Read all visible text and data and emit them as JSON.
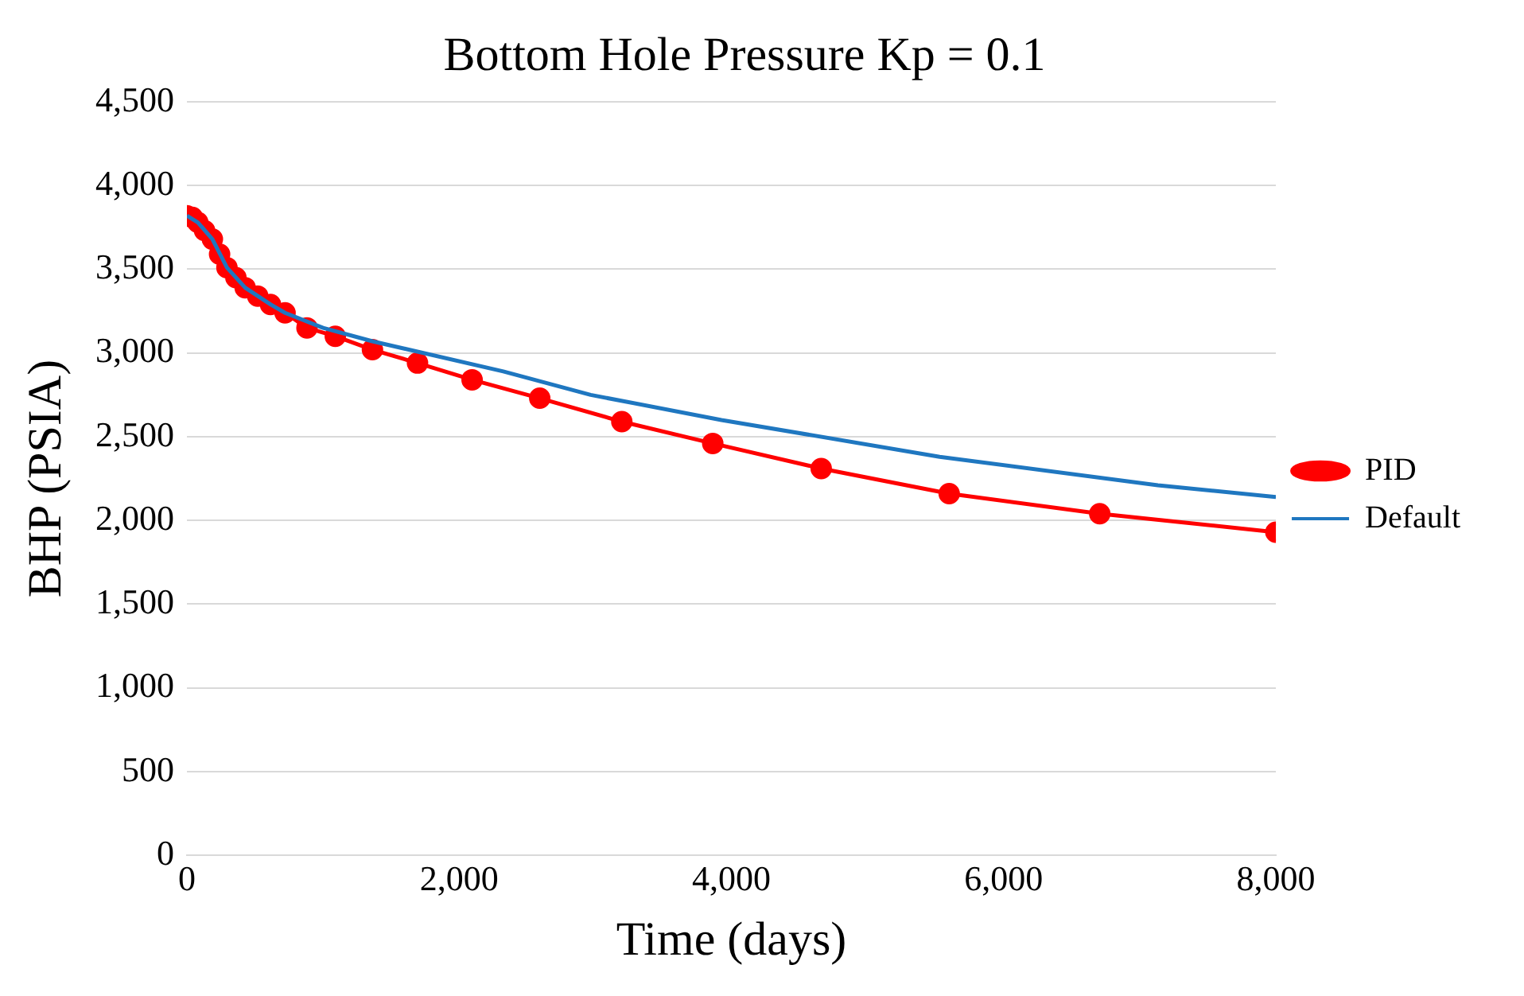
{
  "chart_data": {
    "type": "line",
    "title": "Bottom Hole Pressure Kp = 0.1",
    "xlabel": "Time (days)",
    "ylabel": "BHP (PSIA)",
    "xlim": [
      0,
      8000
    ],
    "xticks": [
      {
        "value": 0,
        "label": "0"
      },
      {
        "value": 2000,
        "label": "2,000"
      },
      {
        "value": 4000,
        "label": "4,000"
      },
      {
        "value": 6000,
        "label": "6,000"
      },
      {
        "value": 8000,
        "label": "8,000"
      }
    ],
    "ylim": [
      0,
      4500
    ],
    "yticks": [
      {
        "value": 0,
        "label": "0"
      },
      {
        "value": 500,
        "label": "500"
      },
      {
        "value": 1000,
        "label": "1,000"
      },
      {
        "value": 1500,
        "label": "1,500"
      },
      {
        "value": 2000,
        "label": "2,000"
      },
      {
        "value": 2500,
        "label": "2,500"
      },
      {
        "value": 3000,
        "label": "3,000"
      },
      {
        "value": 3500,
        "label": "3,500"
      },
      {
        "value": 4000,
        "label": "4,000"
      },
      {
        "value": 4500,
        "label": "4,500"
      }
    ],
    "grid": "y",
    "legend": "right",
    "series": [
      {
        "name": "PID",
        "color": "#ff0000",
        "marker": "circle",
        "x": [
          0,
          40,
          80,
          130,
          187,
          240,
          294,
          360,
          428,
          520,
          614,
          721,
          882,
          1090,
          1363,
          1694,
          2095,
          2592,
          3195,
          3863,
          4660,
          5600,
          6706,
          8000
        ],
        "values": [
          3820,
          3810,
          3780,
          3730,
          3680,
          3590,
          3510,
          3450,
          3390,
          3340,
          3290,
          3240,
          3150,
          3100,
          3020,
          2940,
          2840,
          2730,
          2590,
          2460,
          2310,
          2160,
          2040,
          1930
        ]
      },
      {
        "name": "Default",
        "color": "#1f77c0",
        "marker": "none",
        "x": [
          0,
          80,
          187,
          294,
          428,
          614,
          721,
          1000,
          1363,
          2324,
          2966,
          3927,
          5530,
          7133,
          8000
        ],
        "values": [
          3820,
          3780,
          3680,
          3510,
          3390,
          3290,
          3240,
          3150,
          3070,
          2890,
          2750,
          2600,
          2380,
          2210,
          2140
        ]
      }
    ]
  }
}
